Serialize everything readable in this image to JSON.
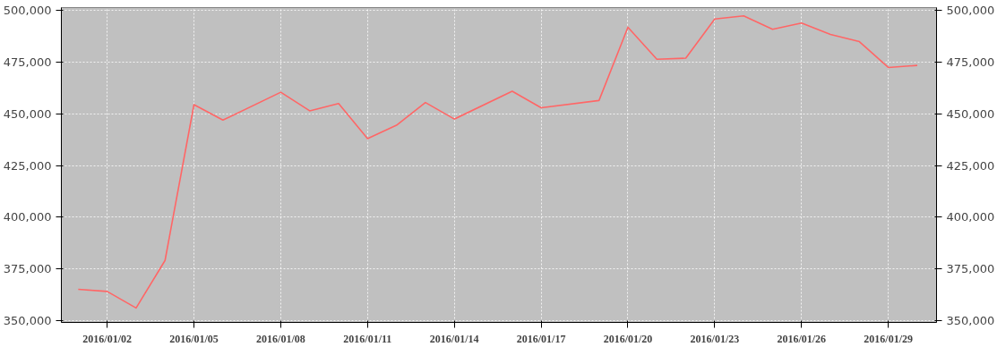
{
  "chart_data": {
    "type": "line",
    "x": [
      "2016-01-01",
      "2016-01-02",
      "2016-01-03",
      "2016-01-04",
      "2016-01-05",
      "2016-01-06",
      "2016-01-08",
      "2016-01-09",
      "2016-01-10",
      "2016-01-11",
      "2016-01-12",
      "2016-01-13",
      "2016-01-14",
      "2016-01-16",
      "2016-01-17",
      "2016-01-19",
      "2016-01-20",
      "2016-01-21",
      "2016-01-22",
      "2016-01-23",
      "2016-01-24",
      "2016-01-25",
      "2016-01-26",
      "2016-01-27",
      "2016-01-28",
      "2016-01-29",
      "2016-01-30"
    ],
    "series": [
      {
        "color": "#ff6666",
        "values": [
          365000,
          364000,
          356000,
          379000,
          454500,
          447000,
          460500,
          451500,
          455000,
          438000,
          444500,
          455500,
          447500,
          461000,
          453000,
          456500,
          492000,
          476500,
          477000,
          496000,
          497500,
          491000,
          494000,
          488500,
          485000,
          472500,
          473500
        ]
      }
    ],
    "xlim": [
      "2015-12-31T10:00",
      "2016-01-30T16:00"
    ],
    "xticks": [
      {
        "value": "2016-01-02",
        "label": "2016/01/02"
      },
      {
        "value": "2016-01-05",
        "label": "2016/01/05"
      },
      {
        "value": "2016-01-08",
        "label": "2016/01/08"
      },
      {
        "value": "2016-01-11",
        "label": "2016/01/11"
      },
      {
        "value": "2016-01-14",
        "label": "2016/01/14"
      },
      {
        "value": "2016-01-17",
        "label": "2016/01/17"
      },
      {
        "value": "2016-01-20",
        "label": "2016/01/20"
      },
      {
        "value": "2016-01-23",
        "label": "2016/01/23"
      },
      {
        "value": "2016-01-26",
        "label": "2016/01/26"
      },
      {
        "value": "2016-01-29",
        "label": "2016/01/29"
      }
    ],
    "ylim": [
      349000,
      501500
    ],
    "yticks": [
      {
        "value": 350000,
        "label": "350,000"
      },
      {
        "value": 375000,
        "label": "375,000"
      },
      {
        "value": 400000,
        "label": "400,000"
      },
      {
        "value": 425000,
        "label": "425,000"
      },
      {
        "value": 450000,
        "label": "450,000"
      },
      {
        "value": 475000,
        "label": "475,000"
      },
      {
        "value": 500000,
        "label": "500,000"
      }
    ],
    "y2lim": [
      349000,
      501500
    ],
    "y2ticks": [
      {
        "value": 350000,
        "label": "350,000"
      },
      {
        "value": 375000,
        "label": "375,000"
      },
      {
        "value": 400000,
        "label": "400,000"
      },
      {
        "value": 425000,
        "label": "425,000"
      },
      {
        "value": 450000,
        "label": "450,000"
      },
      {
        "value": 475000,
        "label": "475,000"
      },
      {
        "value": 500000,
        "label": "500,000"
      }
    ],
    "grid": true,
    "marker": "none",
    "line_style": "solid"
  }
}
